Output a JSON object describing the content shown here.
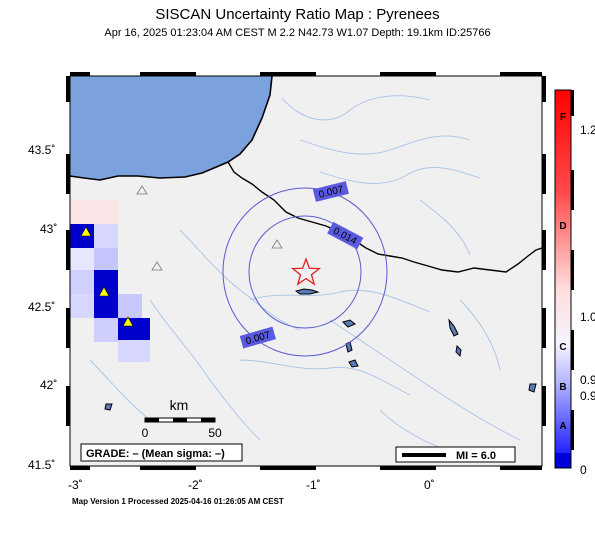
{
  "title": "SISCAN Uncertainty Ratio Map : Pyrenees",
  "subtitle": "Apr 16, 2025 01:23:04 AM CEST   M 2.2   N42.73 W1.07   Depth: 19.1km   ID:25766",
  "footer": "Map Version 1 Processed 2025-04-16 01:26:05 AM CEST",
  "map": {
    "lat_ticks": [
      "43.5˚",
      "43˚",
      "42.5˚",
      "42˚",
      "41.5˚"
    ],
    "lon_ticks": [
      "-3˚",
      "-2˚",
      "-1˚",
      "0˚"
    ],
    "contours": [
      "0.007",
      "0.014",
      "0.007"
    ],
    "scale_bar": {
      "title": "km",
      "start": "0",
      "end": "50"
    },
    "grade_text": "GRADE: – (Mean sigma: –)",
    "mi_text": "MI = 6.0",
    "epicenter": {
      "lat": 42.73,
      "lon": -1.07
    },
    "colors": {
      "sea": "#7ba2dc",
      "land": "#f0f0f0",
      "epicenter": "#e02020",
      "contour": "#5a5ad0",
      "contour_label_bg": "#5a5ae0",
      "high_cell": "#0000cc"
    }
  },
  "colorbar": {
    "letters": [
      "F",
      "D",
      "C",
      "B",
      "A"
    ],
    "values": [
      "1.2",
      "1.0",
      "0.9",
      "0.9",
      "0"
    ]
  }
}
